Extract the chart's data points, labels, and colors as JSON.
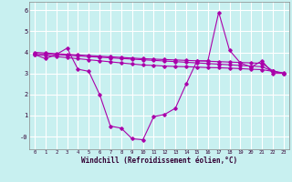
{
  "xlabel": "Windchill (Refroidissement éolien,°C)",
  "bg_color": "#c8f0f0",
  "line_color": "#aa00aa",
  "grid_color": "#ffffff",
  "xlim": [
    -0.5,
    23.5
  ],
  "ylim": [
    -0.6,
    6.4
  ],
  "yticks": [
    0,
    1,
    2,
    3,
    4,
    5,
    6
  ],
  "ytick_labels": [
    "-0",
    "1",
    "2",
    "3",
    "4",
    "5",
    "6"
  ],
  "xticks": [
    0,
    1,
    2,
    3,
    4,
    5,
    6,
    7,
    8,
    9,
    10,
    11,
    12,
    13,
    14,
    15,
    16,
    17,
    18,
    19,
    20,
    21,
    22,
    23
  ],
  "line1_x": [
    0,
    1,
    2,
    3,
    4,
    5,
    6,
    7,
    8,
    9,
    10,
    11,
    12,
    13,
    14,
    15,
    16,
    17,
    18,
    19,
    20,
    21,
    22,
    23
  ],
  "line1_y": [
    3.9,
    3.7,
    3.9,
    4.2,
    3.2,
    3.1,
    2.0,
    0.5,
    0.4,
    -0.1,
    -0.15,
    0.95,
    1.05,
    1.35,
    2.5,
    3.6,
    3.6,
    5.9,
    4.1,
    3.5,
    3.3,
    3.6,
    3.0,
    3.0
  ],
  "line2_x": [
    0,
    1,
    2,
    3,
    4,
    5,
    6,
    7,
    8,
    9,
    10,
    11,
    12,
    13,
    14,
    15,
    16,
    17,
    18,
    19,
    20,
    21,
    22,
    23
  ],
  "line2_y": [
    4.0,
    3.97,
    3.94,
    3.91,
    3.88,
    3.85,
    3.82,
    3.79,
    3.76,
    3.73,
    3.7,
    3.68,
    3.66,
    3.64,
    3.62,
    3.6,
    3.58,
    3.56,
    3.54,
    3.52,
    3.5,
    3.48,
    3.12,
    3.02
  ],
  "line3_x": [
    0,
    1,
    2,
    3,
    4,
    5,
    6,
    7,
    8,
    9,
    10,
    11,
    12,
    13,
    14,
    15,
    16,
    17,
    18,
    19,
    20,
    21,
    22,
    23
  ],
  "line3_y": [
    3.95,
    3.92,
    3.89,
    3.86,
    3.83,
    3.8,
    3.77,
    3.74,
    3.71,
    3.68,
    3.65,
    3.62,
    3.59,
    3.56,
    3.53,
    3.5,
    3.47,
    3.44,
    3.41,
    3.38,
    3.35,
    3.32,
    3.1,
    3.0
  ],
  "line4_x": [
    0,
    1,
    2,
    3,
    4,
    5,
    6,
    7,
    8,
    9,
    10,
    11,
    12,
    13,
    14,
    15,
    16,
    17,
    18,
    19,
    20,
    21,
    22,
    23
  ],
  "line4_y": [
    3.9,
    3.85,
    3.8,
    3.75,
    3.7,
    3.65,
    3.6,
    3.55,
    3.5,
    3.45,
    3.4,
    3.38,
    3.35,
    3.33,
    3.32,
    3.3,
    3.28,
    3.27,
    3.25,
    3.23,
    3.2,
    3.18,
    3.1,
    3.0
  ]
}
